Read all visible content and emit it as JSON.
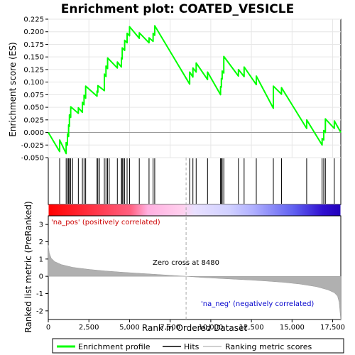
{
  "chart_data": {
    "type": "line",
    "title": "Enrichment plot: COATED_VESICLE",
    "xlabel": "Rank in Ordered Dataset",
    "ylabel_top": "Enrichment score (ES)",
    "ylabel_bottom": "Ranked list metric (PreRanked)",
    "x_range": [
      0,
      18000
    ],
    "es_ylim": [
      -0.05,
      0.225
    ],
    "metric_ylim": [
      -2.5,
      3.5
    ],
    "x_ticks": [
      0,
      2500,
      5000,
      7500,
      10000,
      12500,
      15000,
      17500
    ],
    "x_tick_labels": [
      "0",
      "2,500",
      "5,000",
      "7,500",
      "10,000",
      "12,500",
      "15,000",
      "17,500"
    ],
    "es_ticks": [
      -0.05,
      -0.025,
      0.0,
      0.025,
      0.05,
      0.075,
      0.1,
      0.125,
      0.15,
      0.175,
      0.2,
      0.225
    ],
    "es_tick_labels": [
      "-0.050",
      "-0.025",
      "0.000",
      "0.025",
      "0.050",
      "0.075",
      "0.100",
      "0.125",
      "0.150",
      "0.175",
      "0.200",
      "0.225"
    ],
    "metric_ticks": [
      -2,
      -1,
      0,
      1,
      2,
      3
    ],
    "metric_tick_labels": [
      "-2",
      "-1",
      "0",
      "1",
      "2",
      "3"
    ],
    "hits": [
      700,
      1100,
      1180,
      1250,
      1300,
      1380,
      1500,
      1850,
      2100,
      2200,
      2300,
      3000,
      3050,
      3150,
      3450,
      3550,
      3650,
      3750,
      4250,
      4500,
      4550,
      4600,
      4700,
      4850,
      5000,
      5600,
      6200,
      6450,
      6550,
      8700,
      8900,
      9100,
      9800,
      10600,
      10650,
      10700,
      10800,
      11700,
      12050,
      12800,
      13850,
      14350,
      15900,
      16850,
      16950,
      17050,
      17600
    ],
    "es_curve": [
      [
        0,
        0.0
      ],
      [
        700,
        -0.038
      ],
      [
        701,
        -0.015
      ],
      [
        1100,
        -0.042
      ],
      [
        1101,
        -0.02
      ],
      [
        1180,
        -0.025
      ],
      [
        1181,
        -0.003
      ],
      [
        1250,
        -0.008
      ],
      [
        1251,
        0.015
      ],
      [
        1300,
        0.012
      ],
      [
        1301,
        0.035
      ],
      [
        1380,
        0.03
      ],
      [
        1381,
        0.051
      ],
      [
        1850,
        0.038
      ],
      [
        1851,
        0.049
      ],
      [
        2100,
        0.04
      ],
      [
        2101,
        0.06
      ],
      [
        2200,
        0.055
      ],
      [
        2201,
        0.074
      ],
      [
        2300,
        0.068
      ],
      [
        2301,
        0.092
      ],
      [
        3000,
        0.072
      ],
      [
        3001,
        0.082
      ],
      [
        3050,
        0.08
      ],
      [
        3051,
        0.093
      ],
      [
        3450,
        0.083
      ],
      [
        3451,
        0.116
      ],
      [
        3550,
        0.111
      ],
      [
        3551,
        0.132
      ],
      [
        3650,
        0.127
      ],
      [
        3651,
        0.148
      ],
      [
        4250,
        0.128
      ],
      [
        4251,
        0.14
      ],
      [
        4500,
        0.13
      ],
      [
        4501,
        0.148
      ],
      [
        4550,
        0.146
      ],
      [
        4551,
        0.168
      ],
      [
        4700,
        0.163
      ],
      [
        4701,
        0.183
      ],
      [
        4850,
        0.178
      ],
      [
        4851,
        0.197
      ],
      [
        5000,
        0.192
      ],
      [
        5001,
        0.21
      ],
      [
        5600,
        0.187
      ],
      [
        5601,
        0.198
      ],
      [
        6200,
        0.178
      ],
      [
        6201,
        0.188
      ],
      [
        6450,
        0.181
      ],
      [
        6451,
        0.197
      ],
      [
        6550,
        0.193
      ],
      [
        6551,
        0.212
      ],
      [
        8700,
        0.096
      ],
      [
        8701,
        0.12
      ],
      [
        8900,
        0.11
      ],
      [
        8901,
        0.128
      ],
      [
        9100,
        0.12
      ],
      [
        9101,
        0.138
      ],
      [
        9800,
        0.105
      ],
      [
        9801,
        0.12
      ],
      [
        10600,
        0.075
      ],
      [
        10601,
        0.091
      ],
      [
        10650,
        0.09
      ],
      [
        10651,
        0.107
      ],
      [
        10700,
        0.106
      ],
      [
        10701,
        0.122
      ],
      [
        10800,
        0.118
      ],
      [
        10801,
        0.151
      ],
      [
        11700,
        0.112
      ],
      [
        11701,
        0.125
      ],
      [
        12050,
        0.111
      ],
      [
        12051,
        0.13
      ],
      [
        12800,
        0.095
      ],
      [
        12801,
        0.112
      ],
      [
        13850,
        0.048
      ],
      [
        13851,
        0.092
      ],
      [
        14350,
        0.076
      ],
      [
        14351,
        0.089
      ],
      [
        15900,
        0.008
      ],
      [
        15901,
        0.025
      ],
      [
        16850,
        -0.025
      ],
      [
        16851,
        -0.012
      ],
      [
        16950,
        -0.015
      ],
      [
        16951,
        0.004
      ],
      [
        17050,
        0.0
      ],
      [
        17051,
        0.027
      ],
      [
        17600,
        0.008
      ],
      [
        17601,
        0.023
      ],
      [
        18000,
        0.0
      ]
    ],
    "metric_curve": [
      [
        0,
        1.8
      ],
      [
        60,
        1.35
      ],
      [
        180,
        1.05
      ],
      [
        400,
        0.85
      ],
      [
        800,
        0.68
      ],
      [
        1500,
        0.52
      ],
      [
        2500,
        0.4
      ],
      [
        3500,
        0.31
      ],
      [
        4500,
        0.24
      ],
      [
        5500,
        0.18
      ],
      [
        6500,
        0.12
      ],
      [
        7500,
        0.06
      ],
      [
        8480,
        0.0
      ],
      [
        9500,
        -0.07
      ],
      [
        10500,
        -0.12
      ],
      [
        11500,
        -0.17
      ],
      [
        12500,
        -0.22
      ],
      [
        13500,
        -0.28
      ],
      [
        14500,
        -0.35
      ],
      [
        15500,
        -0.45
      ],
      [
        16500,
        -0.6
      ],
      [
        17200,
        -0.78
      ],
      [
        17600,
        -0.95
      ],
      [
        17800,
        -1.15
      ],
      [
        17900,
        -1.5
      ],
      [
        18000,
        -2.55
      ]
    ],
    "zero_cross_x": 8480,
    "annotation_zero": "Zero cross at 8480",
    "annotation_pos": "'na_pos' (positively correlated)",
    "annotation_neg": "'na_neg' (negatively correlated)",
    "legend": [
      "Enrichment profile",
      "Hits",
      "Ranking metric scores"
    ],
    "colors": {
      "es_line": "#00ff00",
      "hit": "#000000",
      "metric_fill": "#b0b0b0",
      "zero_line": "#aaaaaa",
      "pos_label": "#cc0000",
      "neg_label": "#0000cc",
      "band_red": "#ff0000",
      "band_pink": "#ffb0e0",
      "band_lavender": "#b8b8ff",
      "band_blue": "#2200cc"
    }
  }
}
